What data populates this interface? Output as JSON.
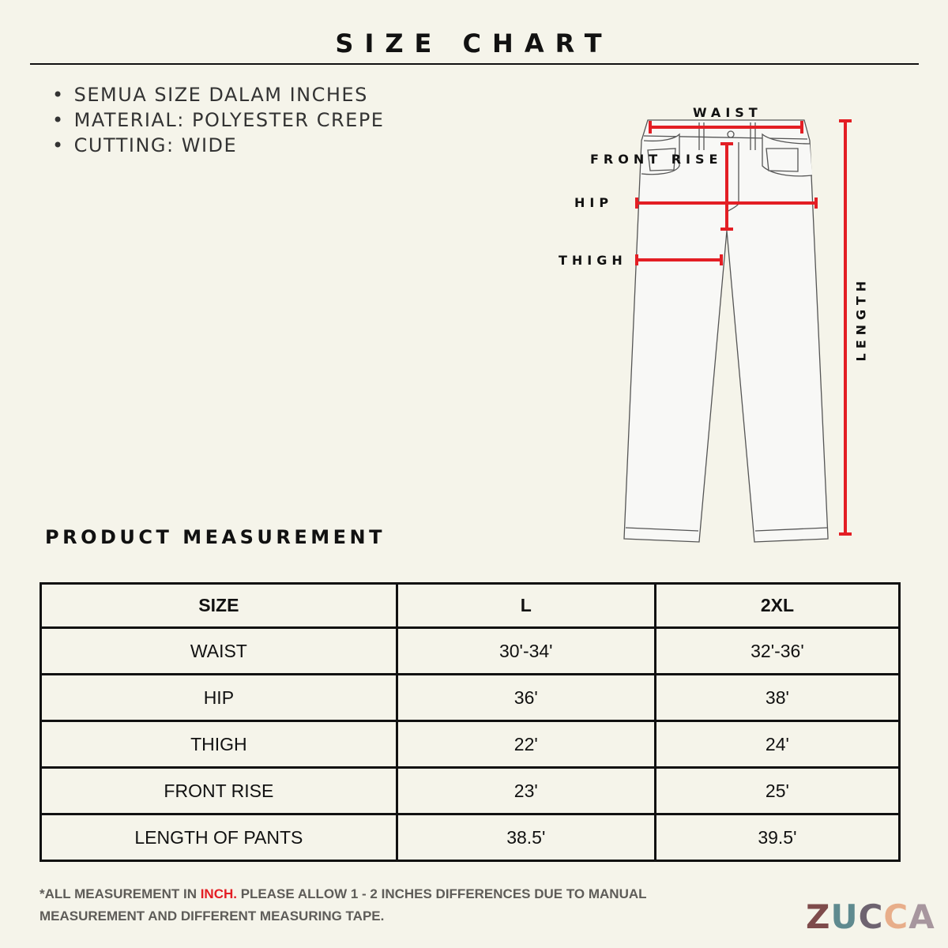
{
  "title": "SIZE CHART",
  "bullets": [
    "SEMUA SIZE DALAM INCHES",
    "MATERIAL: POLYESTER CREPE",
    "CUTTING: WIDE"
  ],
  "diagram": {
    "labels": {
      "waist": "WAIST",
      "front_rise": "FRONT RISE",
      "hip": "HIP",
      "thigh": "THIGH",
      "length": "LENGTH"
    },
    "marker_color": "#e31e24"
  },
  "section_title": "PRODUCT MEASUREMENT",
  "table": {
    "headers": [
      "SIZE",
      "L",
      "2XL"
    ],
    "rows": [
      [
        "WAIST",
        "30'-34'",
        "32'-36'"
      ],
      [
        "HIP",
        "36'",
        "38'"
      ],
      [
        "THIGH",
        "22'",
        "24'"
      ],
      [
        "FRONT RISE",
        "23'",
        "25'"
      ],
      [
        "LENGTH OF PANTS",
        "38.5'",
        "39.5'"
      ]
    ]
  },
  "note": {
    "prefix": "*ALL MEASUREMENT IN ",
    "highlight": "INCH.",
    "suffix": " PLEASE ALLOW 1 - 2 INCHES DIFFERENCES DUE TO MANUAL MEASUREMENT AND DIFFERENT MEASURING TAPE."
  },
  "logo": {
    "text": "ZUCCA",
    "colors": [
      "#7e4b4b",
      "#5f8a8f",
      "#6e6370",
      "#e8ae8a",
      "#a7969e"
    ]
  }
}
